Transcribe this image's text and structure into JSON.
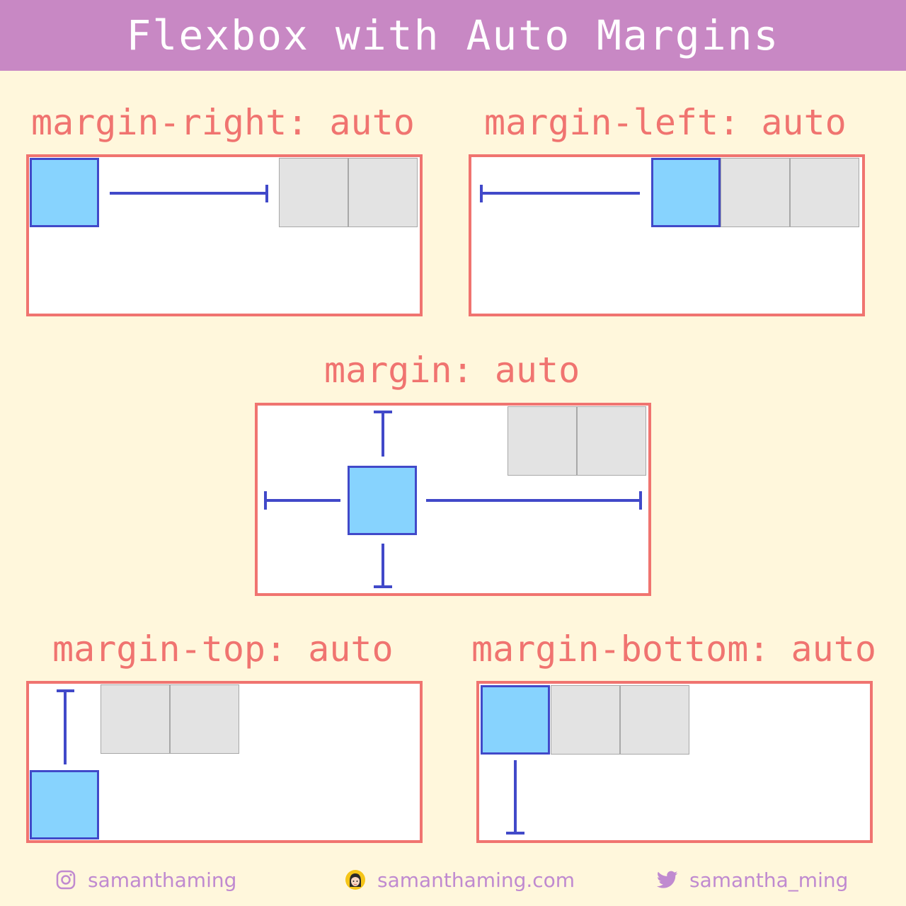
{
  "header": {
    "title": "Flexbox with Auto Margins"
  },
  "panels": {
    "margin_right": {
      "label": "margin-right: auto"
    },
    "margin_left": {
      "label": "margin-left: auto"
    },
    "margin": {
      "label": "margin: auto"
    },
    "margin_top": {
      "label": "margin-top: auto"
    },
    "margin_bottom": {
      "label": "margin-bottom: auto"
    }
  },
  "footer": {
    "instagram": {
      "icon": "instagram-icon",
      "text": "samanthaming"
    },
    "website": {
      "icon": "avatar-icon",
      "text": "samanthaming.com"
    },
    "twitter": {
      "icon": "twitter-icon",
      "text": "samantha_ming"
    }
  },
  "colors": {
    "header_bg": "#c888c4",
    "page_bg": "#fff7dc",
    "accent": "#f07470",
    "highlight_item": "#87d3fe",
    "arrow": "#4149c9",
    "plain_item": "#e3e3e3",
    "footer_text": "#c08ad0"
  }
}
